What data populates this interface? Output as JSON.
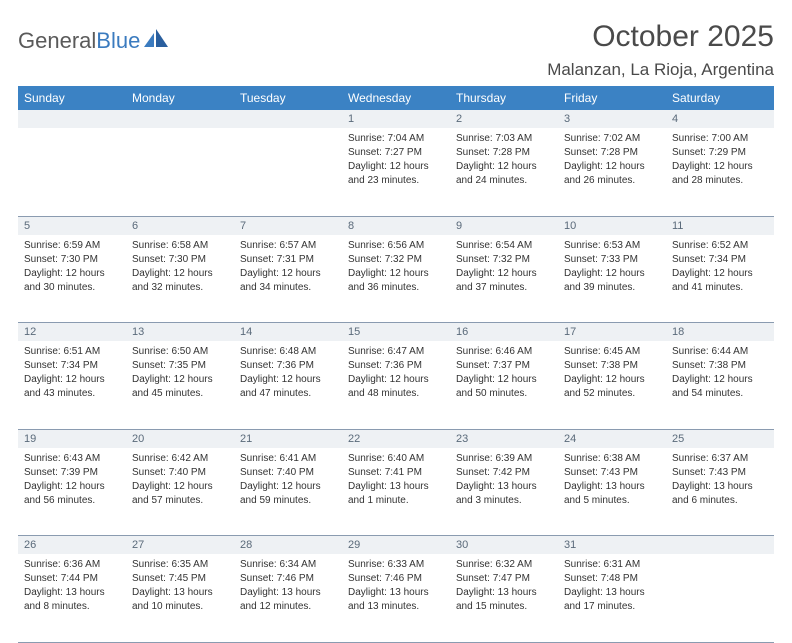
{
  "logo": {
    "text_gray": "General",
    "text_blue": "Blue"
  },
  "title": "October 2025",
  "location": "Malanzan, La Rioja, Argentina",
  "colors": {
    "header_bg": "#3b82c4",
    "header_text": "#ffffff",
    "daynum_bg": "#eef1f4",
    "daynum_text": "#5a6a7a",
    "body_text": "#333333",
    "rule": "#8a9bb0",
    "logo_gray": "#5a5a5a",
    "logo_blue": "#3b7bbf"
  },
  "weekdays": [
    "Sunday",
    "Monday",
    "Tuesday",
    "Wednesday",
    "Thursday",
    "Friday",
    "Saturday"
  ],
  "weeks": [
    {
      "nums": [
        "",
        "",
        "",
        "1",
        "2",
        "3",
        "4"
      ],
      "cells": [
        null,
        null,
        null,
        {
          "sunrise": "Sunrise: 7:04 AM",
          "sunset": "Sunset: 7:27 PM",
          "daylight": "Daylight: 12 hours and 23 minutes."
        },
        {
          "sunrise": "Sunrise: 7:03 AM",
          "sunset": "Sunset: 7:28 PM",
          "daylight": "Daylight: 12 hours and 24 minutes."
        },
        {
          "sunrise": "Sunrise: 7:02 AM",
          "sunset": "Sunset: 7:28 PM",
          "daylight": "Daylight: 12 hours and 26 minutes."
        },
        {
          "sunrise": "Sunrise: 7:00 AM",
          "sunset": "Sunset: 7:29 PM",
          "daylight": "Daylight: 12 hours and 28 minutes."
        }
      ]
    },
    {
      "nums": [
        "5",
        "6",
        "7",
        "8",
        "9",
        "10",
        "11"
      ],
      "cells": [
        {
          "sunrise": "Sunrise: 6:59 AM",
          "sunset": "Sunset: 7:30 PM",
          "daylight": "Daylight: 12 hours and 30 minutes."
        },
        {
          "sunrise": "Sunrise: 6:58 AM",
          "sunset": "Sunset: 7:30 PM",
          "daylight": "Daylight: 12 hours and 32 minutes."
        },
        {
          "sunrise": "Sunrise: 6:57 AM",
          "sunset": "Sunset: 7:31 PM",
          "daylight": "Daylight: 12 hours and 34 minutes."
        },
        {
          "sunrise": "Sunrise: 6:56 AM",
          "sunset": "Sunset: 7:32 PM",
          "daylight": "Daylight: 12 hours and 36 minutes."
        },
        {
          "sunrise": "Sunrise: 6:54 AM",
          "sunset": "Sunset: 7:32 PM",
          "daylight": "Daylight: 12 hours and 37 minutes."
        },
        {
          "sunrise": "Sunrise: 6:53 AM",
          "sunset": "Sunset: 7:33 PM",
          "daylight": "Daylight: 12 hours and 39 minutes."
        },
        {
          "sunrise": "Sunrise: 6:52 AM",
          "sunset": "Sunset: 7:34 PM",
          "daylight": "Daylight: 12 hours and 41 minutes."
        }
      ]
    },
    {
      "nums": [
        "12",
        "13",
        "14",
        "15",
        "16",
        "17",
        "18"
      ],
      "cells": [
        {
          "sunrise": "Sunrise: 6:51 AM",
          "sunset": "Sunset: 7:34 PM",
          "daylight": "Daylight: 12 hours and 43 minutes."
        },
        {
          "sunrise": "Sunrise: 6:50 AM",
          "sunset": "Sunset: 7:35 PM",
          "daylight": "Daylight: 12 hours and 45 minutes."
        },
        {
          "sunrise": "Sunrise: 6:48 AM",
          "sunset": "Sunset: 7:36 PM",
          "daylight": "Daylight: 12 hours and 47 minutes."
        },
        {
          "sunrise": "Sunrise: 6:47 AM",
          "sunset": "Sunset: 7:36 PM",
          "daylight": "Daylight: 12 hours and 48 minutes."
        },
        {
          "sunrise": "Sunrise: 6:46 AM",
          "sunset": "Sunset: 7:37 PM",
          "daylight": "Daylight: 12 hours and 50 minutes."
        },
        {
          "sunrise": "Sunrise: 6:45 AM",
          "sunset": "Sunset: 7:38 PM",
          "daylight": "Daylight: 12 hours and 52 minutes."
        },
        {
          "sunrise": "Sunrise: 6:44 AM",
          "sunset": "Sunset: 7:38 PM",
          "daylight": "Daylight: 12 hours and 54 minutes."
        }
      ]
    },
    {
      "nums": [
        "19",
        "20",
        "21",
        "22",
        "23",
        "24",
        "25"
      ],
      "cells": [
        {
          "sunrise": "Sunrise: 6:43 AM",
          "sunset": "Sunset: 7:39 PM",
          "daylight": "Daylight: 12 hours and 56 minutes."
        },
        {
          "sunrise": "Sunrise: 6:42 AM",
          "sunset": "Sunset: 7:40 PM",
          "daylight": "Daylight: 12 hours and 57 minutes."
        },
        {
          "sunrise": "Sunrise: 6:41 AM",
          "sunset": "Sunset: 7:40 PM",
          "daylight": "Daylight: 12 hours and 59 minutes."
        },
        {
          "sunrise": "Sunrise: 6:40 AM",
          "sunset": "Sunset: 7:41 PM",
          "daylight": "Daylight: 13 hours and 1 minute."
        },
        {
          "sunrise": "Sunrise: 6:39 AM",
          "sunset": "Sunset: 7:42 PM",
          "daylight": "Daylight: 13 hours and 3 minutes."
        },
        {
          "sunrise": "Sunrise: 6:38 AM",
          "sunset": "Sunset: 7:43 PM",
          "daylight": "Daylight: 13 hours and 5 minutes."
        },
        {
          "sunrise": "Sunrise: 6:37 AM",
          "sunset": "Sunset: 7:43 PM",
          "daylight": "Daylight: 13 hours and 6 minutes."
        }
      ]
    },
    {
      "nums": [
        "26",
        "27",
        "28",
        "29",
        "30",
        "31",
        ""
      ],
      "cells": [
        {
          "sunrise": "Sunrise: 6:36 AM",
          "sunset": "Sunset: 7:44 PM",
          "daylight": "Daylight: 13 hours and 8 minutes."
        },
        {
          "sunrise": "Sunrise: 6:35 AM",
          "sunset": "Sunset: 7:45 PM",
          "daylight": "Daylight: 13 hours and 10 minutes."
        },
        {
          "sunrise": "Sunrise: 6:34 AM",
          "sunset": "Sunset: 7:46 PM",
          "daylight": "Daylight: 13 hours and 12 minutes."
        },
        {
          "sunrise": "Sunrise: 6:33 AM",
          "sunset": "Sunset: 7:46 PM",
          "daylight": "Daylight: 13 hours and 13 minutes."
        },
        {
          "sunrise": "Sunrise: 6:32 AM",
          "sunset": "Sunset: 7:47 PM",
          "daylight": "Daylight: 13 hours and 15 minutes."
        },
        {
          "sunrise": "Sunrise: 6:31 AM",
          "sunset": "Sunset: 7:48 PM",
          "daylight": "Daylight: 13 hours and 17 minutes."
        },
        null
      ]
    }
  ]
}
